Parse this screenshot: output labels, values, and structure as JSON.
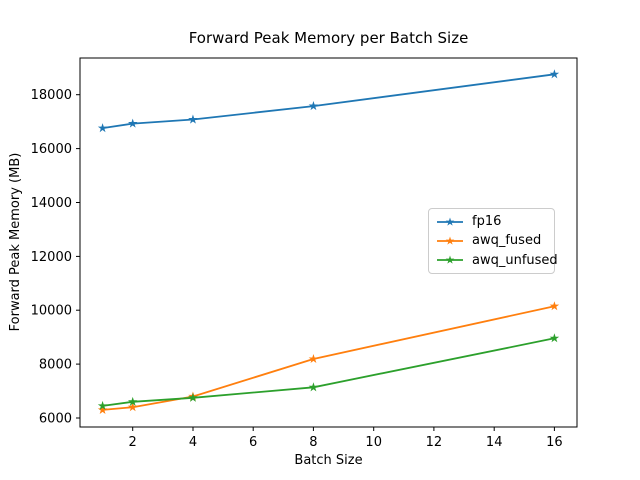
{
  "chart_data": {
    "type": "line",
    "title": "Forward Peak Memory per Batch Size",
    "xlabel": "Batch Size",
    "ylabel": "Forward Peak Memory (MB)",
    "x": [
      1,
      2,
      4,
      8,
      16
    ],
    "series": [
      {
        "name": "fp16",
        "color": "#1f77b4",
        "marker": "star",
        "values": [
          16760,
          16930,
          17080,
          17580,
          18760
        ]
      },
      {
        "name": "awq_fused",
        "color": "#ff7f0e",
        "marker": "star",
        "values": [
          6300,
          6400,
          6800,
          8190,
          10150
        ]
      },
      {
        "name": "awq_unfused",
        "color": "#2ca02c",
        "marker": "star",
        "values": [
          6450,
          6600,
          6750,
          7140,
          8960
        ]
      }
    ],
    "xticks": [
      2,
      4,
      6,
      8,
      10,
      12,
      14,
      16
    ],
    "yticks": [
      6000,
      8000,
      10000,
      12000,
      14000,
      16000,
      18000
    ],
    "xlim": [
      0.25,
      16.75
    ],
    "ylim": [
      5666,
      19364
    ],
    "grid": false,
    "legend_position": "center-right",
    "background": "#ffffff",
    "spine_color": "#000000"
  }
}
